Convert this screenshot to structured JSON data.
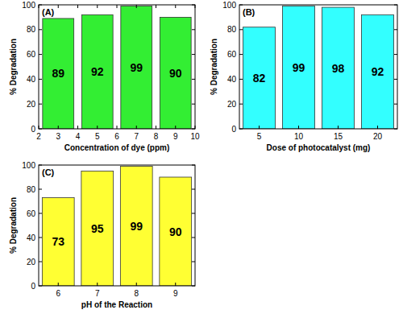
{
  "chart_data": [
    {
      "type": "bar",
      "title": "(A)",
      "x_label": "Concentration of dye (ppm)",
      "y_label": "% Degradation",
      "x": [
        3,
        5,
        7,
        9
      ],
      "values": [
        89,
        92,
        99,
        90
      ],
      "color": "#33ee33",
      "xlim": [
        2,
        10
      ],
      "xticks": [
        2,
        3,
        4,
        5,
        6,
        7,
        8,
        9,
        10
      ],
      "ylim": [
        0,
        100
      ],
      "yticks": [
        0,
        20,
        40,
        60,
        80,
        100
      ],
      "data_labels": true
    },
    {
      "type": "bar",
      "title": "(B)",
      "x_label": "Dose of photocatalyst (mg)",
      "y_label": "% Degradation",
      "categories": [
        "5",
        "10",
        "15",
        "20"
      ],
      "values": [
        82,
        99,
        98,
        92
      ],
      "color": "#33ffff",
      "ylim": [
        0,
        100
      ],
      "yticks": [
        0,
        20,
        40,
        60,
        80,
        100
      ],
      "data_labels": true
    },
    {
      "type": "bar",
      "title": "(C)",
      "x_label": "pH of the Reaction",
      "y_label": "% Degradation",
      "categories": [
        "6",
        "7",
        "8",
        "9"
      ],
      "values": [
        73,
        95,
        99,
        90
      ],
      "color": "#ffff33",
      "ylim": [
        0,
        100
      ],
      "yticks": [
        0,
        20,
        40,
        60,
        80,
        100
      ],
      "data_labels": true
    }
  ]
}
